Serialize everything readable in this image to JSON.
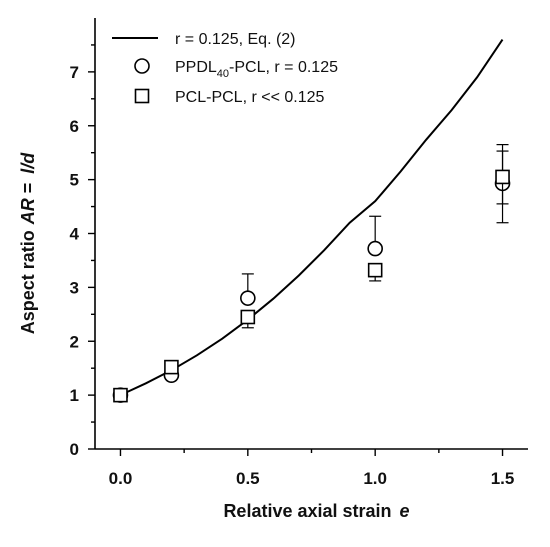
{
  "chart_data": {
    "type": "scatter",
    "xlabel": "Relative axial strain",
    "xlabel_symbol": "e",
    "ylabel": "Aspect ratio",
    "ylabel_symbol": "AR",
    "ylabel_eq": " = ",
    "ylabel_ratio": "l/d",
    "xlim": [
      -0.1,
      1.6
    ],
    "ylim": [
      0,
      8
    ],
    "x_ticks": [
      0.0,
      0.5,
      1.0,
      1.5
    ],
    "x_tick_labels": [
      "0.0",
      "0.5",
      "1.0",
      "1.5"
    ],
    "x_minor_ticks": [
      0.25,
      0.75,
      1.25
    ],
    "y_ticks": [
      0,
      1,
      2,
      3,
      4,
      5,
      6,
      7
    ],
    "y_tick_labels": [
      "0",
      "1",
      "2",
      "3",
      "4",
      "5",
      "6",
      "7"
    ],
    "y_minor_ticks": [
      0.5,
      1.5,
      2.5,
      3.5,
      4.5,
      5.5,
      6.5,
      7.5
    ],
    "grid": false,
    "legend_position": "top-left",
    "series": [
      {
        "name": "r = 0.125, Eq. (2)",
        "kind": "line",
        "x": [
          0.0,
          0.1,
          0.2,
          0.3,
          0.4,
          0.5,
          0.6,
          0.7,
          0.8,
          0.9,
          1.0,
          1.1,
          1.2,
          1.3,
          1.4,
          1.5
        ],
        "y": [
          1.0,
          1.22,
          1.46,
          1.74,
          2.05,
          2.4,
          2.79,
          3.22,
          3.69,
          4.2,
          4.6,
          5.15,
          5.74,
          6.29,
          6.9,
          7.6
        ]
      },
      {
        "name_main": "PPDL",
        "name_sub": "40",
        "name_rest": "-PCL, r = 0.125",
        "kind": "marker",
        "marker": "circle",
        "x": [
          0.0,
          0.2,
          0.5,
          1.0,
          1.5
        ],
        "y": [
          1.0,
          1.37,
          2.8,
          3.72,
          4.93
        ],
        "yerr_up": [
          0.0,
          0.0,
          0.45,
          0.6,
          0.6
        ],
        "yerr_down": [
          0.0,
          0.0,
          0.0,
          0.0,
          0.73
        ]
      },
      {
        "name": "PCL-PCL, r << 0.125",
        "kind": "marker",
        "marker": "square",
        "x": [
          0.0,
          0.2,
          0.5,
          1.0,
          1.5
        ],
        "y": [
          1.0,
          1.52,
          2.45,
          3.32,
          5.05
        ],
        "yerr_up": [
          0.0,
          0.0,
          0.0,
          0.0,
          0.6
        ],
        "yerr_down": [
          0.0,
          0.0,
          0.2,
          0.2,
          0.5
        ]
      }
    ]
  }
}
